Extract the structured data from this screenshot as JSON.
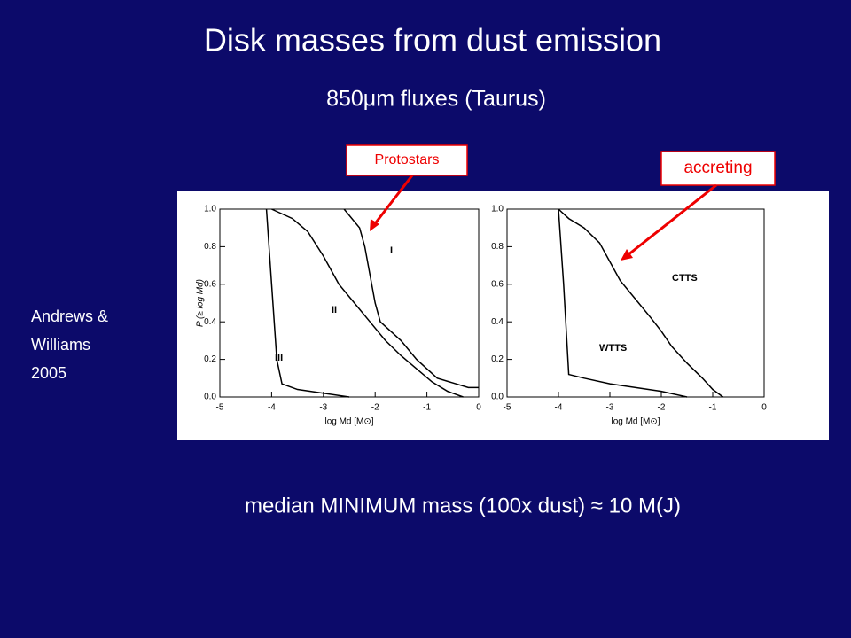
{
  "title": "Disk masses from dust emission",
  "subtitle": "850μm fluxes (Taurus)",
  "citation": [
    "Andrews &",
    "Williams",
    "2005"
  ],
  "annotations": [
    "Protostars",
    "accreting"
  ],
  "footer": "median MINIMUM mass (100x dust) ≈ 10 M(J)",
  "chart_data": [
    {
      "type": "line",
      "x_label": "log Md [M⊙]",
      "y_label": "P (≥ log Md)",
      "xlim": [
        -5,
        0
      ],
      "xticks": [
        -5,
        -4,
        -3,
        -2,
        -1,
        0
      ],
      "ylim": [
        0,
        1
      ],
      "yticks": [
        {
          "value": 0,
          "label": "0.0"
        },
        0.2,
        0.4,
        0.6,
        0.8,
        {
          "value": 1,
          "label": "1.0"
        }
      ],
      "series": [
        {
          "name": "I",
          "color": "#000000",
          "x": [
            -2.6,
            -2.3,
            -2.2,
            -2.1,
            -2.0,
            -1.9,
            -1.5,
            -1.2,
            -0.8,
            -0.2,
            0
          ],
          "values": [
            1.0,
            0.9,
            0.8,
            0.65,
            0.5,
            0.4,
            0.3,
            0.2,
            0.1,
            0.05,
            0.05
          ]
        },
        {
          "name": "II",
          "color": "#000000",
          "x": [
            -4.0,
            -3.6,
            -3.3,
            -3.0,
            -2.7,
            -2.4,
            -2.1,
            -1.8,
            -1.5,
            -1.2,
            -0.9,
            -0.6,
            -0.3
          ],
          "values": [
            1.0,
            0.95,
            0.88,
            0.75,
            0.6,
            0.5,
            0.4,
            0.3,
            0.22,
            0.15,
            0.08,
            0.03,
            0.0
          ]
        },
        {
          "name": "III",
          "color": "#000000",
          "x": [
            -4.1,
            -4.0,
            -3.9,
            -3.8,
            -3.5,
            -3.0,
            -2.5
          ],
          "values": [
            1.0,
            0.6,
            0.2,
            0.07,
            0.04,
            0.02,
            0.0
          ]
        }
      ]
    },
    {
      "type": "line",
      "x_label": "log Md [M⊙]",
      "xlim": [
        -5,
        0
      ],
      "xticks": [
        -5,
        -4,
        -3,
        -2,
        -1,
        0
      ],
      "ylim": [
        0,
        1
      ],
      "yticks": [
        {
          "value": 0,
          "label": "0.0"
        },
        0.2,
        0.4,
        0.6,
        0.8,
        {
          "value": 1,
          "label": "1.0"
        }
      ],
      "series": [
        {
          "name": "CTTS",
          "color": "#000000",
          "x": [
            -4.0,
            -3.8,
            -3.5,
            -3.2,
            -3.0,
            -2.8,
            -2.5,
            -2.2,
            -2.0,
            -1.8,
            -1.5,
            -1.2,
            -1.0,
            -0.8
          ],
          "values": [
            1.0,
            0.95,
            0.9,
            0.82,
            0.72,
            0.62,
            0.52,
            0.42,
            0.35,
            0.27,
            0.18,
            0.1,
            0.04,
            0.0
          ]
        },
        {
          "name": "WTTS",
          "color": "#000000",
          "x": [
            -4.0,
            -3.9,
            -3.8,
            -3.5,
            -3.0,
            -2.5,
            -2.0,
            -1.5
          ],
          "values": [
            1.0,
            0.6,
            0.12,
            0.1,
            0.07,
            0.05,
            0.03,
            0.0
          ]
        }
      ]
    }
  ]
}
